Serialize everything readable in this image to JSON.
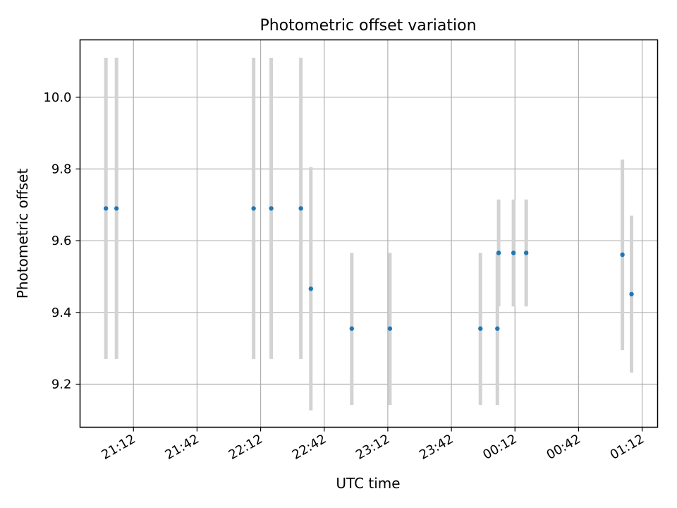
{
  "chart_data": {
    "type": "scatter",
    "title": "Photometric offset variation",
    "xlabel": "UTC time",
    "ylabel": "Photometric offset",
    "x_tick_labels": [
      "21:12",
      "21:42",
      "22:12",
      "22:42",
      "23:12",
      "23:42",
      "00:12",
      "00:42",
      "01:12"
    ],
    "y_tick_labels": [
      "9.2",
      "9.4",
      "9.6",
      "9.8",
      "10.0"
    ],
    "x_tick_minutes": [
      0,
      30,
      60,
      90,
      120,
      150,
      180,
      210,
      240
    ],
    "xlim_minutes": [
      -25.2,
      247.3
    ],
    "y_ticks": [
      9.2,
      9.4,
      9.6,
      9.8,
      10.0
    ],
    "ylim": [
      9.08,
      10.16
    ],
    "grid": true,
    "marker_color": "#1f77b4",
    "errorbar_color": "#d3d3d3",
    "points": [
      {
        "x_minutes": -13.0,
        "y": 9.69,
        "ylow": 9.27,
        "yhigh": 10.11
      },
      {
        "x_minutes": -8.0,
        "y": 9.69,
        "ylow": 9.27,
        "yhigh": 10.11
      },
      {
        "x_minutes": 56.7,
        "y": 9.69,
        "ylow": 9.27,
        "yhigh": 10.11
      },
      {
        "x_minutes": 65.0,
        "y": 9.69,
        "ylow": 9.27,
        "yhigh": 10.11
      },
      {
        "x_minutes": 79.0,
        "y": 9.69,
        "ylow": 9.27,
        "yhigh": 10.11
      },
      {
        "x_minutes": 83.7,
        "y": 9.466,
        "ylow": 9.127,
        "yhigh": 9.805
      },
      {
        "x_minutes": 103.0,
        "y": 9.355,
        "ylow": 9.142,
        "yhigh": 9.566
      },
      {
        "x_minutes": 121.0,
        "y": 9.355,
        "ylow": 9.142,
        "yhigh": 9.566
      },
      {
        "x_minutes": 163.7,
        "y": 9.355,
        "ylow": 9.142,
        "yhigh": 9.566
      },
      {
        "x_minutes": 171.7,
        "y": 9.355,
        "ylow": 9.142,
        "yhigh": 9.566
      },
      {
        "x_minutes": 172.3,
        "y": 9.566,
        "ylow": 9.417,
        "yhigh": 9.715
      },
      {
        "x_minutes": 179.3,
        "y": 9.566,
        "ylow": 9.417,
        "yhigh": 9.715
      },
      {
        "x_minutes": 185.3,
        "y": 9.566,
        "ylow": 9.417,
        "yhigh": 9.715
      },
      {
        "x_minutes": 230.7,
        "y": 9.561,
        "ylow": 9.295,
        "yhigh": 9.826
      },
      {
        "x_minutes": 235.0,
        "y": 9.451,
        "ylow": 9.232,
        "yhigh": 9.67
      }
    ]
  }
}
